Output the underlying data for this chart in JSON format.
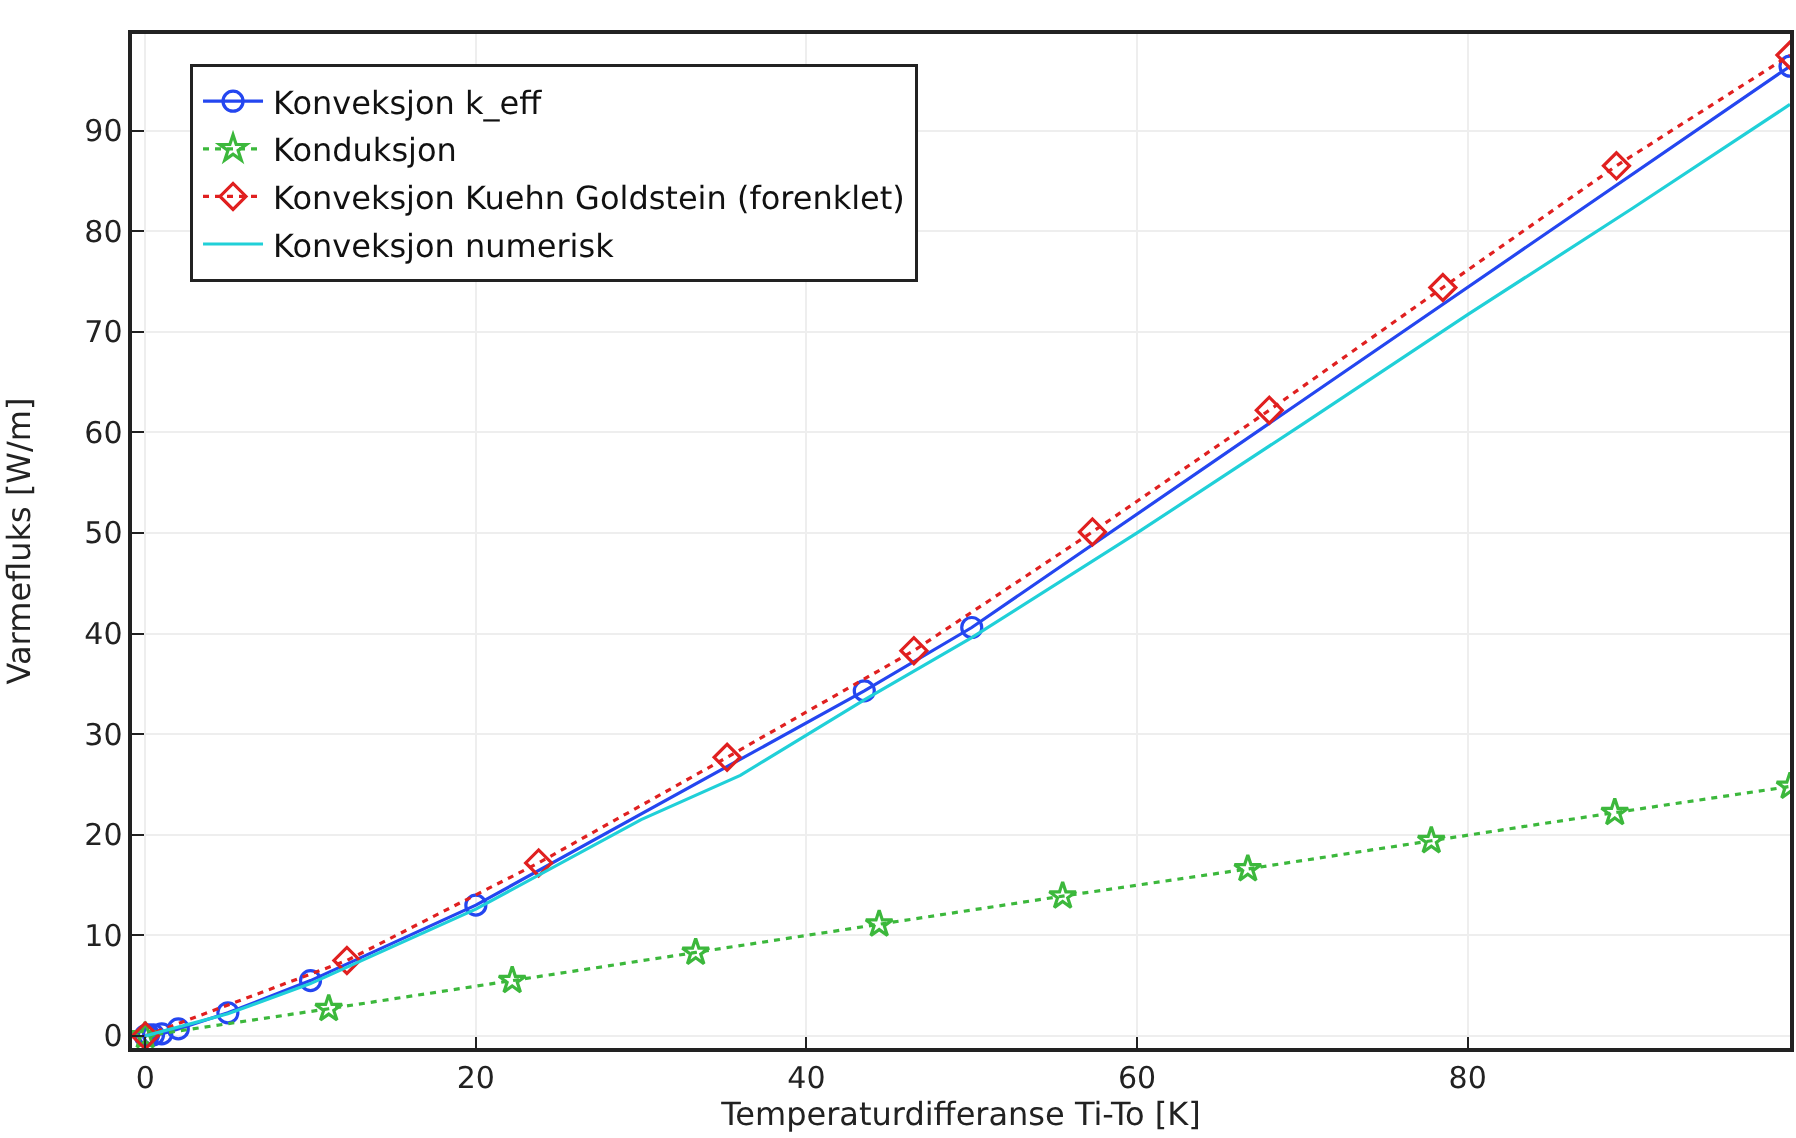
{
  "chart_data": {
    "type": "line",
    "xlabel": "Temperaturdifferanse Ti-To [K]",
    "ylabel": "Varmefluks [W/m]",
    "xlim": [
      -0.8,
      99.5
    ],
    "ylim": [
      -1.2,
      99.6
    ],
    "xticks": [
      0,
      20,
      40,
      60,
      80
    ],
    "yticks": [
      0,
      10,
      20,
      30,
      40,
      50,
      60,
      70,
      80,
      90
    ],
    "grid": true,
    "legend": "top left",
    "series": [
      {
        "name": "Konveksjon k_eff",
        "color": "#2446f0",
        "marker": "circle",
        "line_style": "solid",
        "x": [
          0,
          0.2,
          0.5,
          1,
          2,
          5,
          10,
          20,
          43.5,
          50,
          99.5
        ],
        "values": [
          0,
          0.1,
          0.1,
          0.2,
          0.7,
          2.3,
          5.5,
          13,
          34.3,
          40.6,
          96.4
        ]
      },
      {
        "name": "Konduksjon",
        "color": "#3cb83c",
        "marker": "star",
        "line_style": "dotted",
        "x": [
          0,
          11.1,
          22.2,
          33.3,
          44.4,
          55.5,
          66.7,
          77.8,
          88.9,
          99.5
        ],
        "values": [
          0,
          2.7,
          5.5,
          8.3,
          11.1,
          13.9,
          16.6,
          19.4,
          22.2,
          24.8
        ]
      },
      {
        "name": "Konveksjon Kuehn Goldstein (forenklet)",
        "color": "#e02020",
        "marker": "diamond",
        "line_style": "dotted",
        "x": [
          0,
          12.2,
          23.8,
          35.2,
          46.5,
          57.3,
          68,
          78.5,
          89,
          99.5
        ],
        "values": [
          0,
          7.5,
          17.2,
          27.7,
          38.3,
          50.1,
          62.2,
          74.4,
          86.5,
          97.5
        ]
      },
      {
        "name": "Konveksjon numerisk",
        "color": "#20d0d8",
        "marker": "none",
        "line_style": "solid",
        "x": [
          0,
          5,
          10,
          20,
          30,
          36,
          43.5,
          50,
          60,
          70,
          80,
          90,
          99.5
        ],
        "values": [
          0,
          2.2,
          5.2,
          12.6,
          21.5,
          25.9,
          33.4,
          39.6,
          50,
          60.8,
          71.7,
          82.3,
          92.6
        ]
      }
    ]
  }
}
